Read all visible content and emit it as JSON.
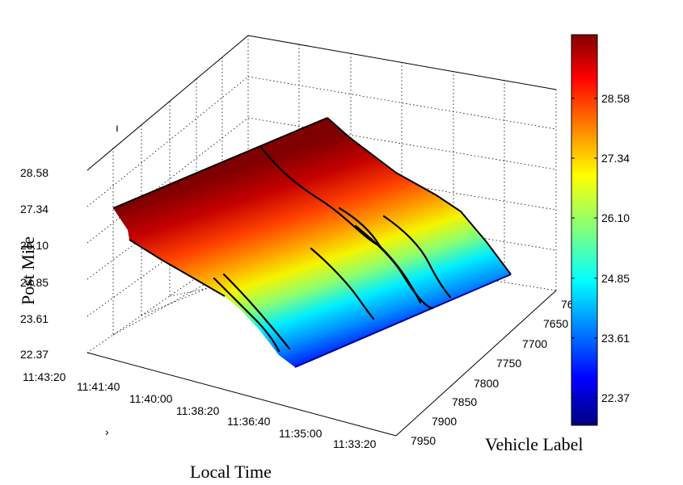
{
  "chart_data": {
    "type": "surface3d",
    "xlabel": "Local Time",
    "ylabel": "Vehicle Label",
    "zlabel": "Post Mile",
    "x_ticks": [
      "11:43:20",
      "11:41:40",
      "11:40:00",
      "11:38:20",
      "11:36:40",
      "11:35:00",
      "11:33:20"
    ],
    "y_ticks": [
      "76",
      "7650",
      "7700",
      "7750",
      "7800",
      "7850",
      "7900",
      "7950"
    ],
    "z_ticks": [
      "22.37",
      "23.61",
      "24.85",
      "26.10",
      "27.34",
      "28.58"
    ],
    "zlim": [
      22.37,
      28.58
    ],
    "colormap": "jet",
    "colorbar": {
      "ticks": [
        "28.58",
        "27.34",
        "26.10",
        "24.85",
        "23.61",
        "22.37"
      ],
      "range": [
        21.8,
        29.9
      ]
    },
    "stray_marks": [
      "ı",
      "›"
    ]
  }
}
